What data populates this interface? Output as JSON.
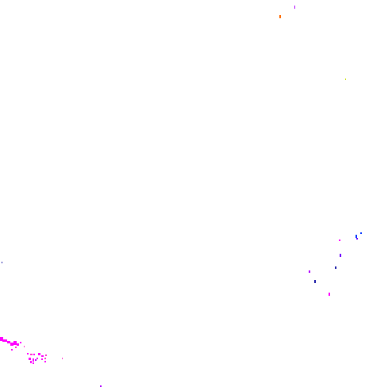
{
  "background_color": "#ffffff",
  "palette": {
    "orange": "#ff6a00",
    "magenta": "#ff00ff",
    "purple": "#b000ff",
    "violet": "#6a00ff",
    "blue": "#0033ff",
    "navy": "#1a1aa6",
    "yellow_green": "#c8e000",
    "pink": "#ff33cc"
  }
}
